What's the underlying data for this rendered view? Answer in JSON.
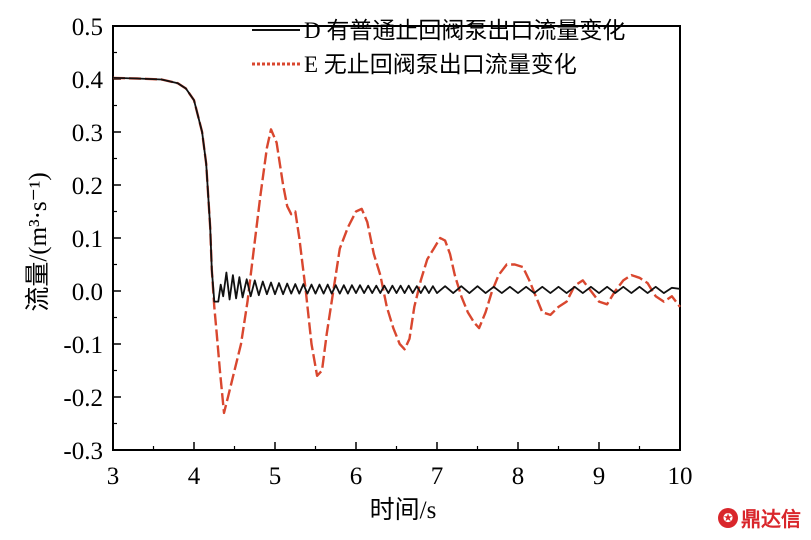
{
  "chart_data": {
    "type": "line",
    "xlabel": "时间/s",
    "ylabel": "流量/(m³·s⁻¹)",
    "xlim": [
      3,
      10
    ],
    "ylim": [
      -0.3,
      0.5
    ],
    "x_ticks": [
      "3",
      "4",
      "5",
      "6",
      "7",
      "8",
      "9",
      "10"
    ],
    "y_ticks": [
      "0.5",
      "0.4",
      "0.3",
      "0.2",
      "0.1",
      "0.0",
      "-0.1",
      "-0.2",
      "-0.3"
    ],
    "legend_position": "top-right",
    "series": [
      {
        "name": "D 有普通止回阀泵出口流量变化",
        "color": "#111111",
        "style": "solid",
        "points": [
          [
            3.0,
            0.402
          ],
          [
            3.3,
            0.401
          ],
          [
            3.6,
            0.399
          ],
          [
            3.8,
            0.392
          ],
          [
            3.9,
            0.382
          ],
          [
            4.0,
            0.36
          ],
          [
            4.1,
            0.3
          ],
          [
            4.15,
            0.24
          ],
          [
            4.2,
            0.12
          ],
          [
            4.22,
            0.04
          ],
          [
            4.25,
            -0.02
          ],
          [
            4.3,
            -0.02
          ],
          [
            4.33,
            0.012
          ],
          [
            4.36,
            -0.01
          ],
          [
            4.4,
            0.035
          ],
          [
            4.44,
            -0.016
          ],
          [
            4.48,
            0.03
          ],
          [
            4.52,
            -0.014
          ],
          [
            4.56,
            0.026
          ],
          [
            4.6,
            -0.012
          ],
          [
            4.65,
            0.022
          ],
          [
            4.7,
            -0.01
          ],
          [
            4.75,
            0.02
          ],
          [
            4.8,
            -0.008
          ],
          [
            4.85,
            0.018
          ],
          [
            4.9,
            -0.006
          ],
          [
            4.95,
            0.016
          ],
          [
            5.0,
            -0.006
          ],
          [
            5.05,
            0.015
          ],
          [
            5.1,
            -0.006
          ],
          [
            5.15,
            0.014
          ],
          [
            5.2,
            -0.005
          ],
          [
            5.25,
            0.013
          ],
          [
            5.3,
            -0.005
          ],
          [
            5.35,
            0.013
          ],
          [
            5.4,
            -0.005
          ],
          [
            5.45,
            0.012
          ],
          [
            5.5,
            -0.005
          ],
          [
            5.55,
            0.012
          ],
          [
            5.6,
            -0.005
          ],
          [
            5.65,
            0.012
          ],
          [
            5.7,
            -0.005
          ],
          [
            5.75,
            0.011
          ],
          [
            5.8,
            -0.005
          ],
          [
            5.85,
            0.011
          ],
          [
            5.9,
            -0.005
          ],
          [
            5.95,
            0.011
          ],
          [
            6.0,
            -0.004
          ],
          [
            6.05,
            0.011
          ],
          [
            6.1,
            -0.004
          ],
          [
            6.15,
            0.01
          ],
          [
            6.2,
            -0.004
          ],
          [
            6.25,
            0.01
          ],
          [
            6.3,
            -0.004
          ],
          [
            6.35,
            0.01
          ],
          [
            6.4,
            -0.004
          ],
          [
            6.45,
            0.01
          ],
          [
            6.5,
            -0.004
          ],
          [
            6.55,
            0.01
          ],
          [
            6.6,
            -0.004
          ],
          [
            6.65,
            0.01
          ],
          [
            6.7,
            -0.004
          ],
          [
            6.75,
            0.009
          ],
          [
            6.8,
            -0.004
          ],
          [
            6.85,
            0.009
          ],
          [
            6.9,
            -0.004
          ],
          [
            6.95,
            0.009
          ],
          [
            7.0,
            -0.004
          ],
          [
            7.1,
            0.009
          ],
          [
            7.2,
            -0.004
          ],
          [
            7.3,
            0.009
          ],
          [
            7.4,
            -0.004
          ],
          [
            7.5,
            0.009
          ],
          [
            7.6,
            -0.004
          ],
          [
            7.7,
            0.008
          ],
          [
            7.8,
            -0.004
          ],
          [
            7.9,
            0.008
          ],
          [
            8.0,
            -0.004
          ],
          [
            8.1,
            0.008
          ],
          [
            8.2,
            -0.004
          ],
          [
            8.3,
            0.008
          ],
          [
            8.4,
            -0.004
          ],
          [
            8.5,
            0.008
          ],
          [
            8.6,
            -0.004
          ],
          [
            8.7,
            0.008
          ],
          [
            8.8,
            -0.004
          ],
          [
            8.9,
            0.008
          ],
          [
            9.0,
            -0.004
          ],
          [
            9.1,
            0.008
          ],
          [
            9.2,
            -0.004
          ],
          [
            9.3,
            0.008
          ],
          [
            9.4,
            -0.004
          ],
          [
            9.5,
            0.008
          ],
          [
            9.6,
            -0.004
          ],
          [
            9.7,
            0.008
          ],
          [
            9.8,
            -0.004
          ],
          [
            9.9,
            0.006
          ],
          [
            10.0,
            0.004
          ]
        ]
      },
      {
        "name": "E 无止回阀泵出口流量变化",
        "color": "#d9472f",
        "style": "dashed",
        "points": [
          [
            3.0,
            0.402
          ],
          [
            3.3,
            0.401
          ],
          [
            3.6,
            0.399
          ],
          [
            3.8,
            0.392
          ],
          [
            3.9,
            0.382
          ],
          [
            4.0,
            0.36
          ],
          [
            4.1,
            0.3
          ],
          [
            4.15,
            0.24
          ],
          [
            4.2,
            0.12
          ],
          [
            4.22,
            0.04
          ],
          [
            4.25,
            -0.03
          ],
          [
            4.28,
            -0.08
          ],
          [
            4.32,
            -0.15
          ],
          [
            4.37,
            -0.23
          ],
          [
            4.42,
            -0.2
          ],
          [
            4.5,
            -0.15
          ],
          [
            4.58,
            -0.1
          ],
          [
            4.66,
            -0.02
          ],
          [
            4.74,
            0.08
          ],
          [
            4.82,
            0.18
          ],
          [
            4.9,
            0.27
          ],
          [
            4.95,
            0.305
          ],
          [
            5.02,
            0.28
          ],
          [
            5.1,
            0.2
          ],
          [
            5.15,
            0.16
          ],
          [
            5.2,
            0.145
          ],
          [
            5.25,
            0.15
          ],
          [
            5.3,
            0.1
          ],
          [
            5.38,
            0.0
          ],
          [
            5.45,
            -0.1
          ],
          [
            5.52,
            -0.16
          ],
          [
            5.58,
            -0.15
          ],
          [
            5.64,
            -0.08
          ],
          [
            5.72,
            0.0
          ],
          [
            5.8,
            0.08
          ],
          [
            5.9,
            0.12
          ],
          [
            6.0,
            0.15
          ],
          [
            6.07,
            0.155
          ],
          [
            6.14,
            0.13
          ],
          [
            6.22,
            0.07
          ],
          [
            6.3,
            0.03
          ],
          [
            6.38,
            -0.03
          ],
          [
            6.46,
            -0.07
          ],
          [
            6.54,
            -0.1
          ],
          [
            6.6,
            -0.11
          ],
          [
            6.66,
            -0.09
          ],
          [
            6.72,
            -0.03
          ],
          [
            6.8,
            0.02
          ],
          [
            6.88,
            0.06
          ],
          [
            6.96,
            0.08
          ],
          [
            7.04,
            0.1
          ],
          [
            7.1,
            0.095
          ],
          [
            7.16,
            0.07
          ],
          [
            7.22,
            0.03
          ],
          [
            7.3,
            -0.01
          ],
          [
            7.38,
            -0.04
          ],
          [
            7.46,
            -0.06
          ],
          [
            7.52,
            -0.07
          ],
          [
            7.6,
            -0.04
          ],
          [
            7.68,
            0.0
          ],
          [
            7.76,
            0.03
          ],
          [
            7.86,
            0.05
          ],
          [
            7.96,
            0.05
          ],
          [
            8.06,
            0.045
          ],
          [
            8.14,
            0.02
          ],
          [
            8.22,
            -0.01
          ],
          [
            8.3,
            -0.04
          ],
          [
            8.4,
            -0.045
          ],
          [
            8.5,
            -0.03
          ],
          [
            8.6,
            -0.02
          ],
          [
            8.7,
            0.01
          ],
          [
            8.8,
            0.02
          ],
          [
            8.9,
            0.0
          ],
          [
            9.0,
            -0.02
          ],
          [
            9.1,
            -0.025
          ],
          [
            9.2,
            0.0
          ],
          [
            9.3,
            0.02
          ],
          [
            9.4,
            0.03
          ],
          [
            9.5,
            0.025
          ],
          [
            9.6,
            0.015
          ],
          [
            9.7,
            -0.01
          ],
          [
            9.8,
            -0.02
          ],
          [
            9.9,
            -0.01
          ],
          [
            10.0,
            -0.03
          ]
        ]
      }
    ]
  },
  "watermark": {
    "text": "鼎达信"
  }
}
